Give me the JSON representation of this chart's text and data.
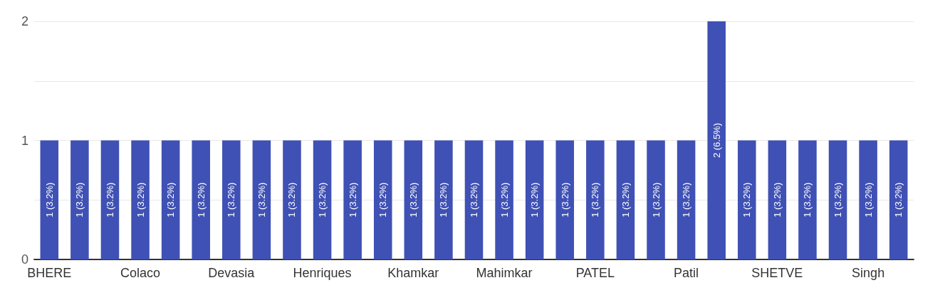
{
  "chart_data": {
    "type": "bar",
    "categories": [
      "BHERE",
      null,
      null,
      "Colaco",
      null,
      null,
      "Devasia",
      null,
      null,
      "Henriques",
      null,
      null,
      "Khamkar",
      null,
      null,
      "Mahimkar",
      null,
      null,
      "PATEL",
      null,
      null,
      "Patil",
      null,
      null,
      "SHETVE",
      null,
      null,
      "Singh",
      null
    ],
    "values": [
      1,
      1,
      1,
      1,
      1,
      1,
      1,
      1,
      1,
      1,
      1,
      1,
      1,
      1,
      1,
      1,
      1,
      1,
      1,
      1,
      1,
      1,
      2,
      1,
      1,
      1,
      1,
      1,
      1
    ],
    "value_labels": [
      "1 (3.2%)",
      "1 (3.2%)",
      "1 (3.2%)",
      "1 (3.2%)",
      "1 (3.2%)",
      "1 (3.2%)",
      "1 (3.2%)",
      "1 (3.2%)",
      "1 (3.2%)",
      "1 (3.2%)",
      "1 (3.2%)",
      "1 (3.2%)",
      "1 (3.2%)",
      "1 (3.2%)",
      "1 (3.2%)",
      "1 (3.2%)",
      "1 (3.2%)",
      "1 (3.2%)",
      "1 (3.2%)",
      "1 (3.2%)",
      "1 (3.2%)",
      "1 (3.2%)",
      "2 (6.5%)",
      "1 (3.2%)",
      "1 (3.2%)",
      "1 (3.2%)",
      "1 (3.2%)",
      "1 (3.2%)",
      "1 (3.2%)"
    ],
    "color": "#3f51b5",
    "ylim": [
      0,
      2
    ],
    "yticks": [
      0,
      {
        "value": 0.5,
        "label": null
      },
      1,
      {
        "value": 1.5,
        "label": null
      },
      2
    ],
    "grid": "y"
  }
}
